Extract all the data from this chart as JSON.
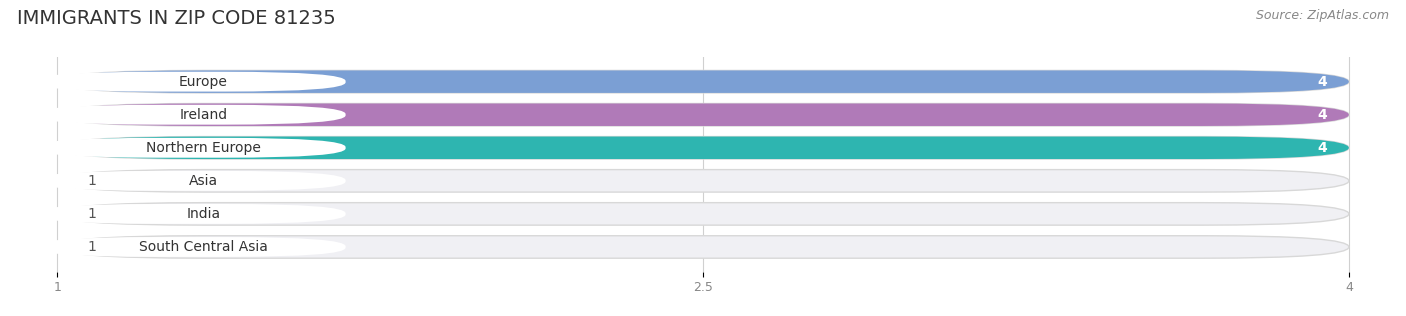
{
  "title": "IMMIGRANTS IN ZIP CODE 81235",
  "source": "Source: ZipAtlas.com",
  "categories": [
    "Europe",
    "Ireland",
    "Northern Europe",
    "Asia",
    "India",
    "South Central Asia"
  ],
  "values": [
    4,
    4,
    4,
    1,
    1,
    1
  ],
  "bar_colors": [
    "#7b9fd4",
    "#b07ab8",
    "#2eb5b0",
    "#b0b0e0",
    "#f4a0b5",
    "#f5d0a0"
  ],
  "xlim_data": [
    1,
    4
  ],
  "xticks": [
    1,
    2.5,
    4
  ],
  "background_color": "#ffffff",
  "bar_bg_color": "#f0f0f0",
  "title_fontsize": 14,
  "source_fontsize": 9,
  "label_fontsize": 10,
  "value_fontsize": 10
}
